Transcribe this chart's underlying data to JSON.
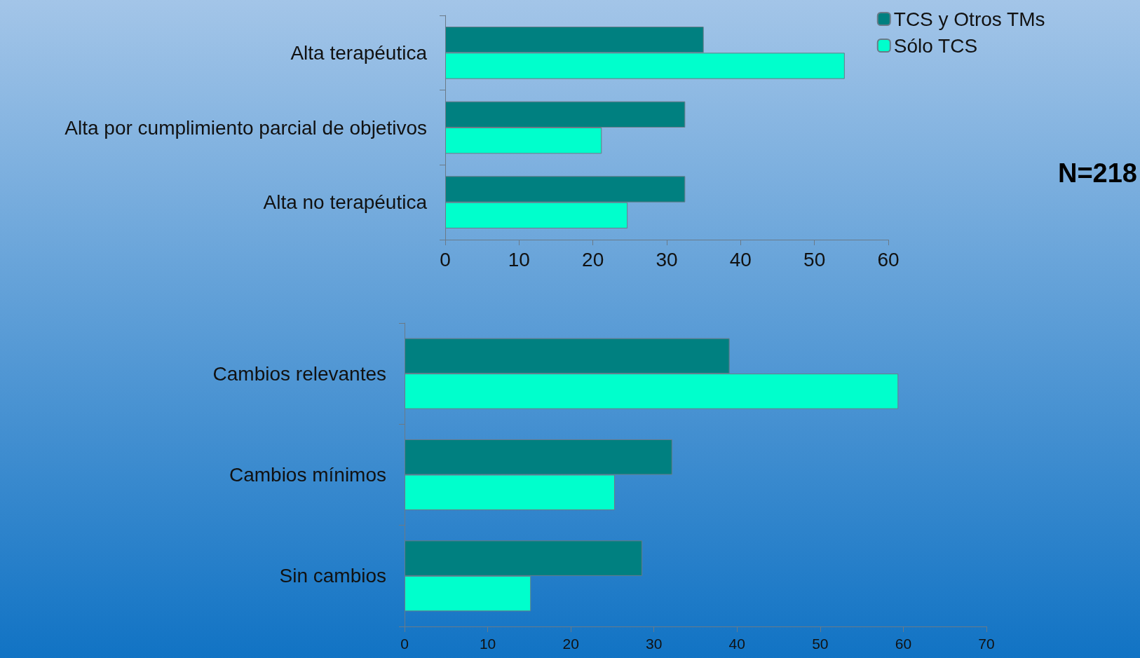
{
  "chart_data": [
    {
      "type": "bar",
      "orientation": "horizontal",
      "categories": [
        "Alta terapéutica",
        "Alta por cumplimiento parcial de objetivos",
        "Alta no terapéutica"
      ],
      "series": [
        {
          "name": "TCS y Otros TMs",
          "color": "#008080",
          "values": [
            35,
            32.5,
            32.5
          ]
        },
        {
          "name": "Sólo TCS",
          "color": "#00ffcc",
          "values": [
            54.1,
            21.2,
            24.7
          ]
        }
      ],
      "xlim": [
        0,
        60
      ],
      "xticks": [
        0,
        10,
        20,
        30,
        40,
        50,
        60
      ],
      "grid": false,
      "legend": "top right",
      "annotations": [
        "N=218"
      ]
    },
    {
      "type": "bar",
      "orientation": "horizontal",
      "categories": [
        "Cambios relevantes",
        "Cambios mínimos",
        "Sin cambios"
      ],
      "series": [
        {
          "color": "#008080",
          "values": [
            39.1,
            32.2,
            28.6
          ]
        },
        {
          "color": "#00ffcc",
          "values": [
            59.4,
            25.3,
            15.2
          ]
        }
      ],
      "xlim": [
        0,
        70
      ],
      "xticks": [
        0,
        10,
        20,
        30,
        40,
        50,
        60,
        70
      ],
      "grid": false,
      "legend": false
    }
  ]
}
